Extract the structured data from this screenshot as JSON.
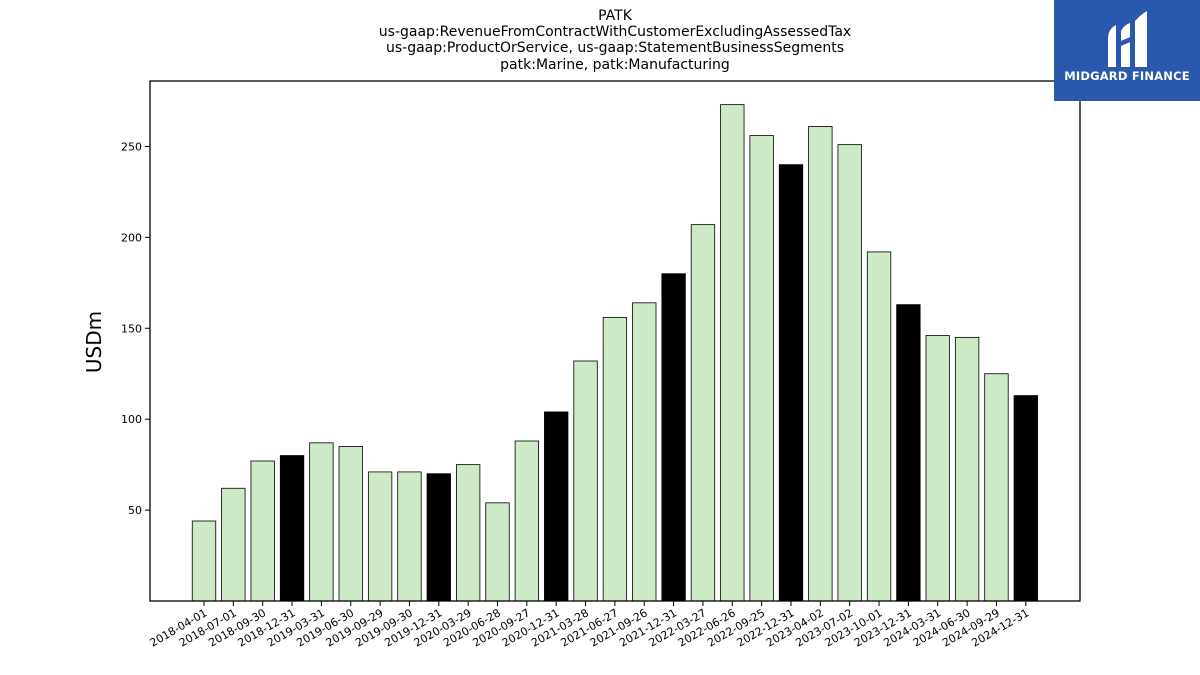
{
  "chart_data": {
    "type": "bar",
    "title_lines": [
      "PATK",
      "us-gaap:RevenueFromContractWithCustomerExcludingAssessedTax",
      "us-gaap:ProductOrService, us-gaap:StatementBusinessSegments",
      "patk:Marine, patk:Manufacturing"
    ],
    "xlabel": "",
    "ylabel": "USDm",
    "ylim": [
      0,
      286
    ],
    "yticks": [
      50,
      100,
      150,
      200,
      250
    ],
    "grid": false,
    "categories": [
      "2018-04-01",
      "2018-07-01",
      "2018-09-30",
      "2018-12-31",
      "2019-03-31",
      "2019-06-30",
      "2019-09-29",
      "2019-09-30",
      "2019-12-31",
      "2020-03-29",
      "2020-06-28",
      "2020-09-27",
      "2020-12-31",
      "2021-03-28",
      "2021-06-27",
      "2021-09-26",
      "2021-12-31",
      "2022-03-27",
      "2022-06-26",
      "2022-09-25",
      "2022-12-31",
      "2023-04-02",
      "2023-07-02",
      "2023-10-01",
      "2023-12-31",
      "2024-03-31",
      "2024-06-30",
      "2024-09-29",
      "2024-12-31"
    ],
    "values": [
      44,
      62,
      77,
      80,
      87,
      85,
      71,
      71,
      70,
      75,
      54,
      88,
      104,
      132,
      156,
      164,
      180,
      207,
      273,
      256,
      240,
      261,
      251,
      192,
      163,
      146,
      145,
      125,
      113
    ],
    "highlight": [
      false,
      false,
      false,
      true,
      false,
      false,
      false,
      false,
      true,
      false,
      false,
      false,
      true,
      false,
      false,
      false,
      true,
      false,
      false,
      false,
      true,
      false,
      false,
      false,
      true,
      false,
      false,
      false,
      true
    ],
    "colors": {
      "normal": "#cde9c6",
      "highlight": "#000000",
      "edge": "#000000"
    }
  },
  "logo": {
    "text": "MIDGARD FINANCE",
    "icon": "midgard-logo-icon"
  }
}
